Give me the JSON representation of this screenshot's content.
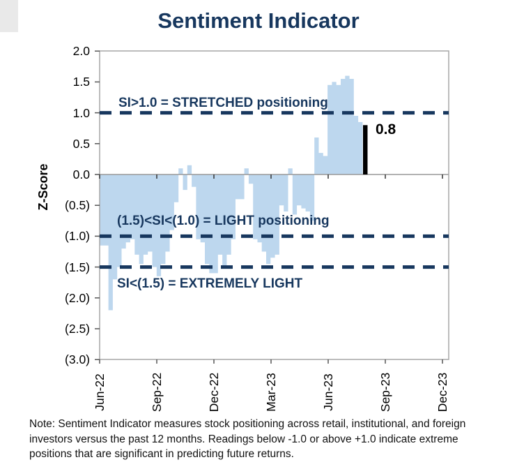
{
  "page": {
    "title": "Sentiment Indicator"
  },
  "chart_data": {
    "type": "area",
    "title": "Sentiment Indicator",
    "xlabel": "",
    "ylabel": "Z-Score",
    "ylim": [
      -3.0,
      2.0
    ],
    "grid": false,
    "legend": "none",
    "y_ticks": [
      "2.0",
      "1.5",
      "1.0",
      "0.5",
      "0.0",
      "(0.5)",
      "(1.0)",
      "(1.5)",
      "(2.0)",
      "(2.5)",
      "(3.0)"
    ],
    "x_ticks": [
      "Jun-22",
      "Sep-22",
      "Dec-22",
      "Mar-23",
      "Jun-23",
      "Sep-23",
      "Dec-23"
    ],
    "series_name": "Sentiment Indicator z-score",
    "frequency": "weekly",
    "start_label": "Jun-22",
    "values": [
      -1.15,
      -1.15,
      -2.2,
      -1.7,
      -1.5,
      -1.2,
      -1.1,
      -1.05,
      -1.3,
      -1.45,
      -1.3,
      -1.25,
      -1.5,
      -1.65,
      -1.45,
      -1.25,
      -0.9,
      -0.45,
      0.1,
      -0.25,
      0.15,
      -0.2,
      -1.05,
      -1.1,
      -1.45,
      -1.6,
      -1.6,
      -1.3,
      -1.5,
      -1.3,
      -1.05,
      -0.4,
      -0.4,
      0.1,
      -0.15,
      -1.05,
      -1.1,
      -1.25,
      -1.45,
      -1.35,
      -1.3,
      -0.5,
      -0.6,
      0.1,
      -0.65,
      -0.5,
      -0.55,
      -0.6,
      -0.75,
      0.6,
      0.35,
      0.3,
      1.45,
      1.5,
      1.45,
      1.55,
      1.6,
      1.55,
      0.95,
      0.85
    ],
    "current_bar": {
      "value": 0.8,
      "label": "0.8"
    },
    "thresholds": [
      {
        "value": 1.0,
        "label": "SI>1.0 = STRETCHED positioning"
      },
      {
        "value": -1.0,
        "label": "(1.5)<SI<(1.0) = LIGHT positioning"
      },
      {
        "value": -1.5,
        "label": "SI<(1.5) = EXTREMELY LIGHT"
      }
    ]
  },
  "note": {
    "line1": "Note: Sentiment Indicator measures stock positioning across retail, institutional, and foreign",
    "line2": "investors versus the past 12 months. Readings below -1.0 or above +1.0 indicate extreme",
    "line3": "positions that are significant in predicting future returns."
  },
  "colors": {
    "navy": "#17375E",
    "area_fill": "#BDD7EE",
    "current_bar": "#000000",
    "plot_border": "#A6A6A6",
    "zero_line": "#999999",
    "tick": "#555555"
  }
}
